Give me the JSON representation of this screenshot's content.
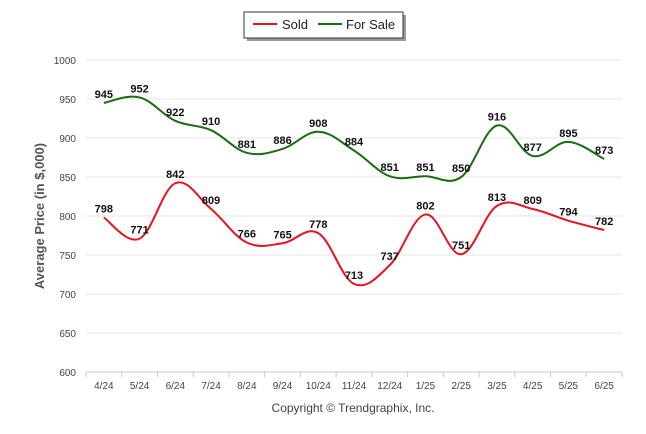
{
  "chart_data": {
    "type": "line",
    "categories": [
      "4/24",
      "5/24",
      "6/24",
      "7/24",
      "8/24",
      "9/24",
      "10/24",
      "11/24",
      "12/24",
      "1/25",
      "2/25",
      "3/25",
      "4/25",
      "5/25",
      "6/25"
    ],
    "series": [
      {
        "name": "Sold",
        "color": "#e8141c",
        "values": [
          798,
          771,
          842,
          809,
          766,
          765,
          778,
          713,
          737,
          802,
          751,
          813,
          809,
          794,
          782
        ]
      },
      {
        "name": "For Sale",
        "color": "#1a6b14",
        "values": [
          945,
          952,
          922,
          910,
          881,
          886,
          908,
          884,
          851,
          851,
          850,
          916,
          877,
          895,
          873
        ]
      }
    ],
    "ylabel": "Average Price (in $,000)",
    "xlabel": "",
    "ylim": [
      600,
      1000
    ],
    "yticks": [
      600,
      650,
      700,
      750,
      800,
      850,
      900,
      950,
      1000
    ],
    "grid": true,
    "legend_position": "top-center",
    "footer": "Copyright © Trendgraphix, Inc."
  }
}
